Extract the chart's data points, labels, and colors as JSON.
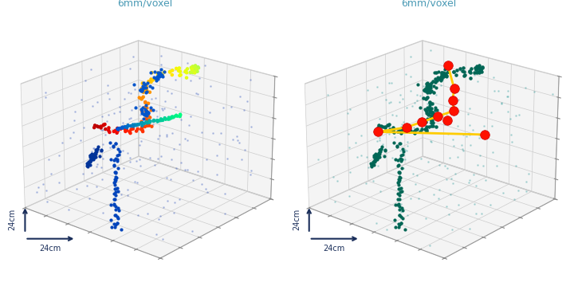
{
  "title": "6mm/voxel",
  "axis_label": "24cm",
  "background_color": "#ffffff",
  "title_color": "#4a9ab5",
  "axis_arrow_color": "#1a2e5a",
  "pane_color": "#ebebeb",
  "pane_edge_color": "#aaaaaa",
  "grid_color": "#cccccc",
  "elev": 22,
  "azim": -50,
  "noise_left_color": "#3355bb",
  "noise_right_color": "#008888",
  "left_track1_color_start": "#0000cc",
  "left_track1_color_end": "#00eeee",
  "right_track_color": "#006655",
  "yellow_color": "#ffcc00",
  "red_dot_color": "#ff1100",
  "red_dot_edge": "#cc0000",
  "yellow_x": [
    1.2,
    1.8,
    2.0,
    2.2,
    1.9,
    1.6,
    1.3,
    0.6,
    3.4
  ],
  "yellow_y": [
    3.5,
    3.0,
    2.7,
    2.5,
    2.3,
    2.1,
    1.9,
    1.7,
    2.1
  ],
  "yellow_z": [
    3.7,
    3.3,
    3.1,
    2.9,
    2.7,
    2.5,
    2.3,
    2.0,
    2.7
  ],
  "red_x": [
    1.2,
    1.8,
    2.0,
    2.2,
    1.9,
    1.6,
    1.3,
    0.6,
    2.1,
    3.4
  ],
  "red_y": [
    3.5,
    3.0,
    2.7,
    2.5,
    2.3,
    2.1,
    1.9,
    1.7,
    2.4,
    2.1
  ],
  "red_z": [
    3.7,
    3.3,
    3.1,
    2.9,
    2.7,
    2.5,
    2.3,
    2.0,
    2.6,
    2.7
  ]
}
